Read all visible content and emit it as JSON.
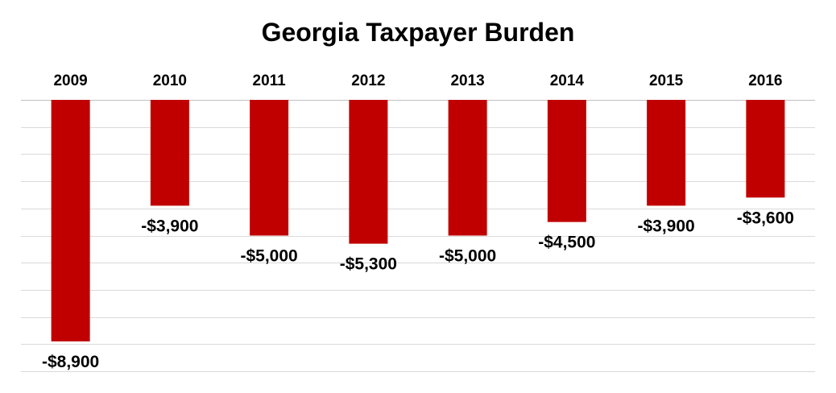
{
  "chart_data": {
    "type": "bar",
    "title": "Georgia Taxpayer Burden",
    "categories": [
      "2009",
      "2010",
      "2011",
      "2012",
      "2013",
      "2014",
      "2015",
      "2016"
    ],
    "values": [
      -8900,
      -3900,
      -5000,
      -5300,
      -5000,
      -4500,
      -3900,
      -3600
    ],
    "value_labels": [
      "-$8,900",
      "-$3,900",
      "-$5,000",
      "-$5,300",
      "-$5,000",
      "-$4,500",
      "-$3,900",
      "-$3,600"
    ],
    "ylim": [
      -10000,
      0
    ],
    "grid": true,
    "category_axis_position": "top",
    "legend": "none",
    "bar_color": "#c00000",
    "grid_color": "#d9d9d9"
  }
}
